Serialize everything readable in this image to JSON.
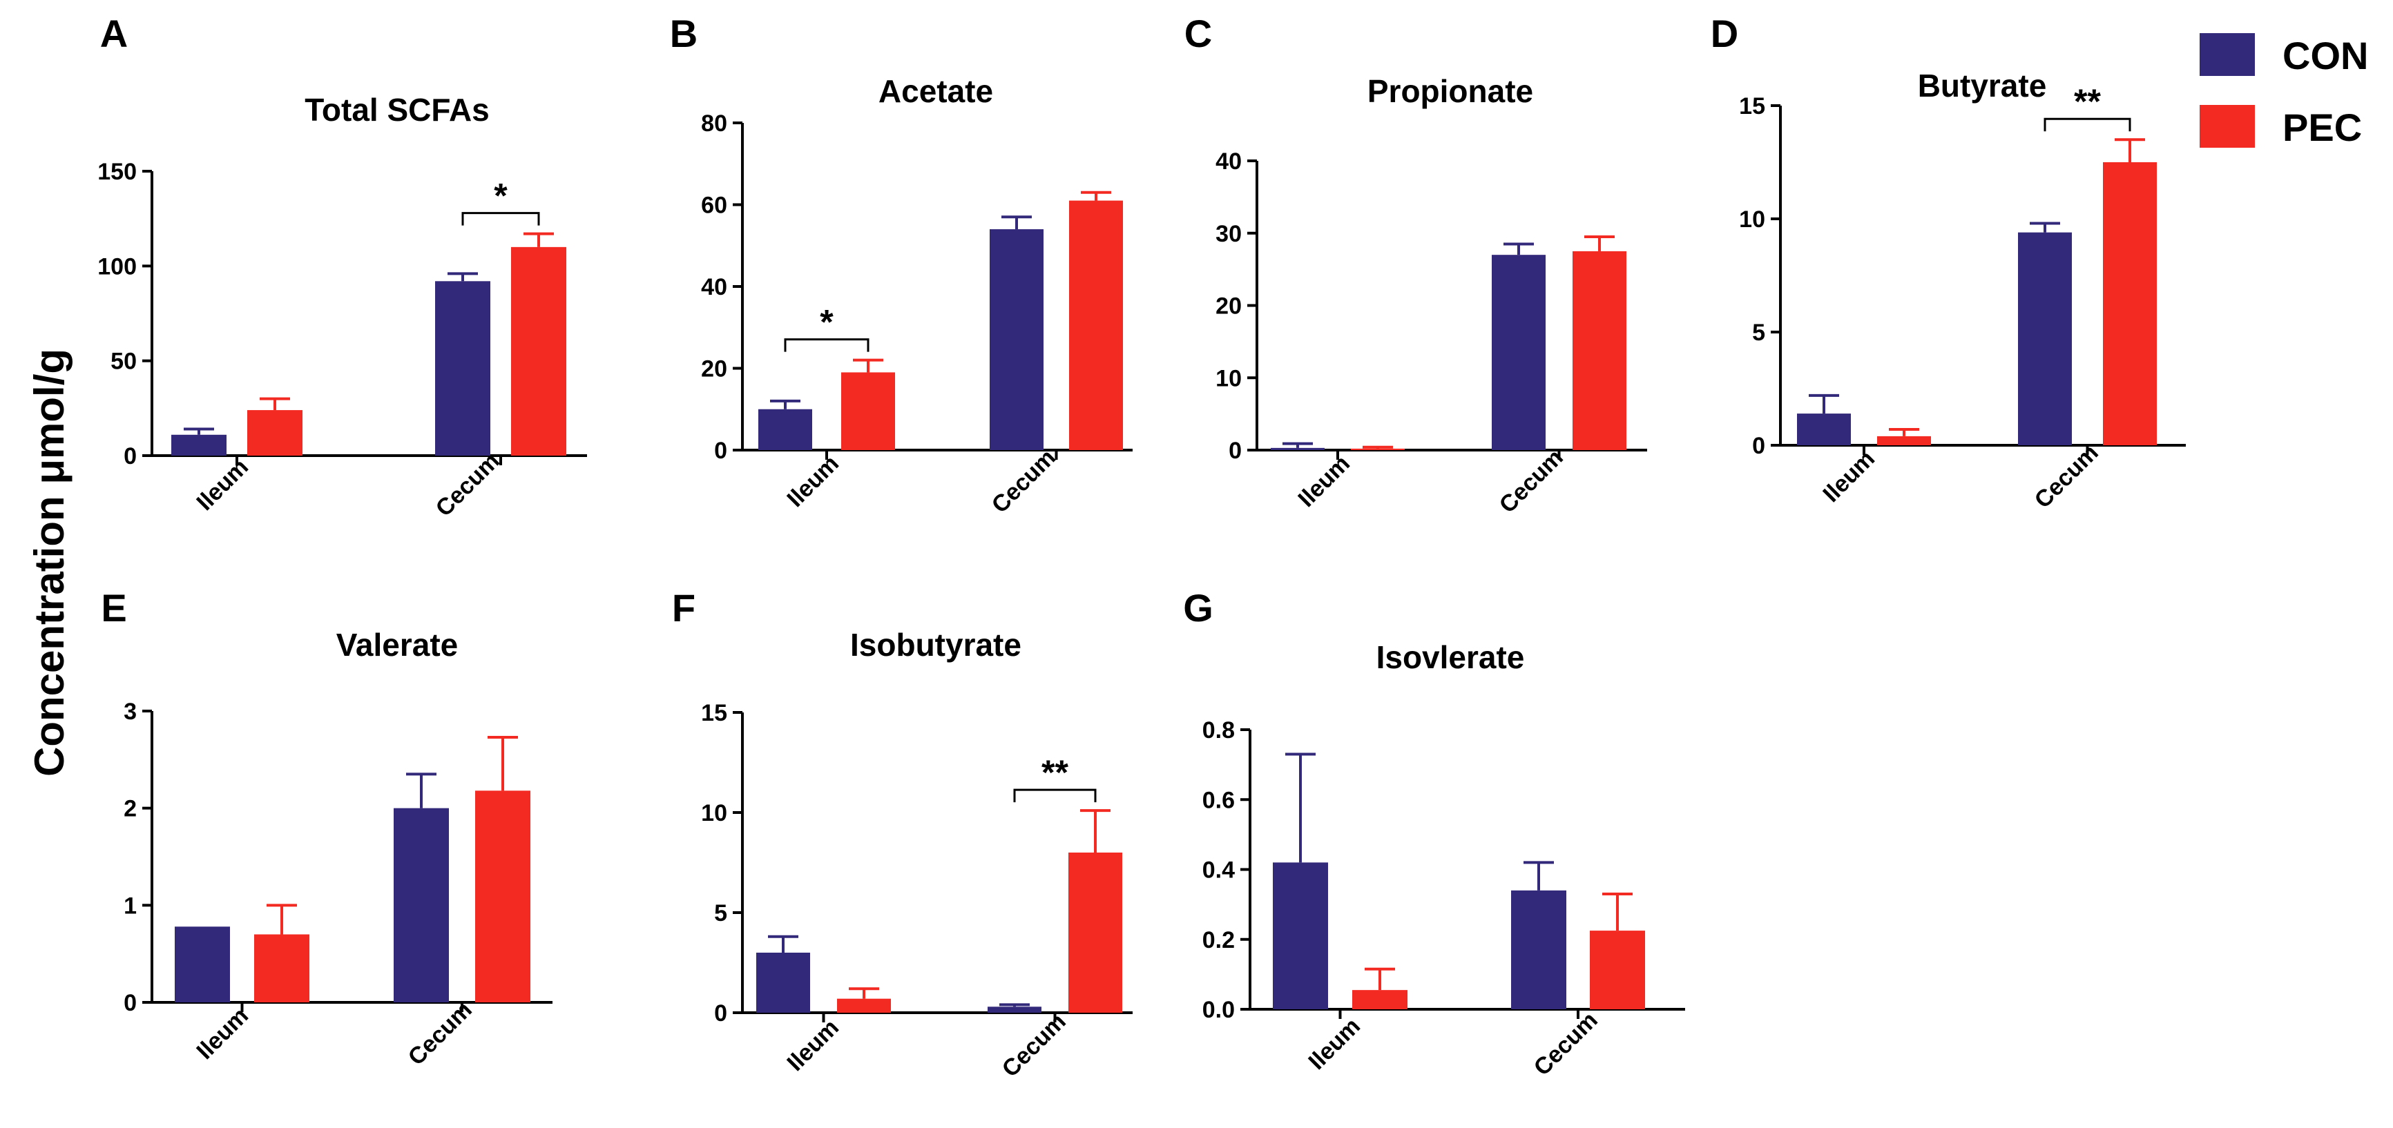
{
  "figure": {
    "y_axis_label": "Concentration μmol/g",
    "legend": [
      {
        "name": "CON",
        "color": "#33297a"
      },
      {
        "name": "PEC",
        "color": "#f32a22"
      }
    ]
  },
  "chart_data": [
    {
      "id": "A",
      "type": "bar",
      "title": "Total SCFAs",
      "categories": [
        "Ileum",
        "Cecum"
      ],
      "ylim": [
        0,
        150
      ],
      "ticks": [
        "0",
        "50",
        "100",
        "150"
      ],
      "series": [
        {
          "name": "CON",
          "values": [
            11,
            92
          ],
          "errors": [
            3,
            4
          ]
        },
        {
          "name": "PEC",
          "values": [
            24,
            110
          ],
          "errors": [
            6,
            7
          ]
        }
      ],
      "significance": [
        {
          "category": 1,
          "label": "*"
        }
      ]
    },
    {
      "id": "B",
      "type": "bar",
      "title": "Acetate",
      "categories": [
        "Ileum",
        "Cecum"
      ],
      "ylim": [
        0,
        80
      ],
      "ticks": [
        "0",
        "20",
        "40",
        "60",
        "80"
      ],
      "series": [
        {
          "name": "CON",
          "values": [
            10,
            54
          ],
          "errors": [
            2,
            3
          ]
        },
        {
          "name": "PEC",
          "values": [
            19,
            61
          ],
          "errors": [
            3,
            2
          ]
        }
      ],
      "significance": [
        {
          "category": 0,
          "label": "*"
        }
      ]
    },
    {
      "id": "C",
      "type": "bar",
      "title": "Propionate",
      "categories": [
        "Ileum",
        "Cecum"
      ],
      "ylim": [
        0,
        40
      ],
      "ticks": [
        "0",
        "10",
        "20",
        "30",
        "40"
      ],
      "series": [
        {
          "name": "CON",
          "values": [
            0.3,
            27
          ],
          "errors": [
            0.6,
            1.5
          ]
        },
        {
          "name": "PEC",
          "values": [
            0.2,
            27.5
          ],
          "errors": [
            0.2,
            2
          ]
        }
      ],
      "significance": []
    },
    {
      "id": "D",
      "type": "bar",
      "title": "Butyrate",
      "categories": [
        "Ileum",
        "Cecum"
      ],
      "ylim": [
        0,
        15
      ],
      "ticks": [
        "0",
        "5",
        "10",
        "15"
      ],
      "series": [
        {
          "name": "CON",
          "values": [
            1.4,
            9.4
          ],
          "errors": [
            0.8,
            0.4
          ]
        },
        {
          "name": "PEC",
          "values": [
            0.4,
            12.5
          ],
          "errors": [
            0.3,
            1.0
          ]
        }
      ],
      "significance": [
        {
          "category": 1,
          "label": "**"
        }
      ]
    },
    {
      "id": "E",
      "type": "bar",
      "title": "Valerate",
      "categories": [
        "Ileum",
        "Cecum"
      ],
      "ylim": [
        0,
        3
      ],
      "ticks": [
        "0",
        "1",
        "2",
        "3"
      ],
      "series": [
        {
          "name": "CON",
          "values": [
            0.78,
            2.0
          ],
          "errors": [
            0,
            0.35
          ]
        },
        {
          "name": "PEC",
          "values": [
            0.7,
            2.18
          ],
          "errors": [
            0.3,
            0.55
          ]
        }
      ],
      "significance": []
    },
    {
      "id": "F",
      "type": "bar",
      "title": "Isobutyrate",
      "categories": [
        "Ileum",
        "Cecum"
      ],
      "ylim": [
        0,
        15
      ],
      "ticks": [
        "0",
        "5",
        "10",
        "15"
      ],
      "series": [
        {
          "name": "CON",
          "values": [
            3.0,
            0.3
          ],
          "errors": [
            0.8,
            0.1
          ]
        },
        {
          "name": "PEC",
          "values": [
            0.7,
            8.0
          ],
          "errors": [
            0.5,
            2.1
          ]
        }
      ],
      "significance": [
        {
          "category": 1,
          "label": "**"
        }
      ]
    },
    {
      "id": "G",
      "type": "bar",
      "title": "Isovlerate",
      "categories": [
        "Ileum",
        "Cecum"
      ],
      "ylim": [
        0,
        0.8
      ],
      "ticks": [
        "0.0",
        "0.2",
        "0.4",
        "0.6",
        "0.8"
      ],
      "series": [
        {
          "name": "CON",
          "values": [
            0.42,
            0.34
          ],
          "errors": [
            0.31,
            0.08
          ]
        },
        {
          "name": "PEC",
          "values": [
            0.055,
            0.225
          ],
          "errors": [
            0.06,
            0.105
          ]
        }
      ],
      "significance": []
    }
  ]
}
